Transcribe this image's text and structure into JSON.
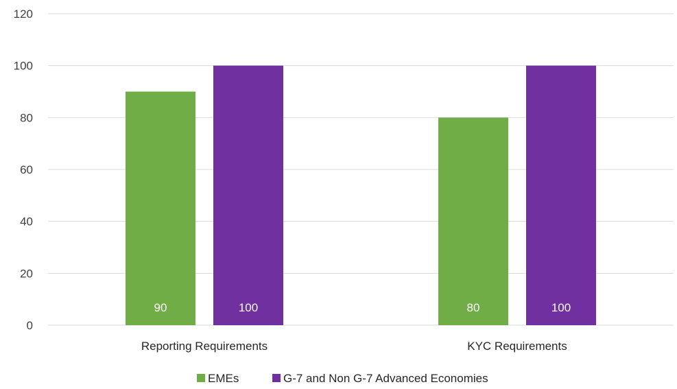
{
  "chart_data": {
    "type": "bar",
    "title": "",
    "xlabel": "",
    "ylabel": "",
    "categories": [
      "Reporting  Requirements",
      "KYC Requirements"
    ],
    "series": [
      {
        "name": "EMEs",
        "values": [
          90,
          80
        ],
        "color": "#70ad47"
      },
      {
        "name": "G-7 and Non G-7 Advanced Economies",
        "values": [
          100,
          100
        ],
        "color": "#7030a0"
      }
    ],
    "ylim": [
      0,
      120
    ],
    "yticks": [
      0,
      20,
      40,
      60,
      80,
      100,
      120
    ],
    "grid": true,
    "legend_position": "bottom",
    "data_labels": "inside-base",
    "gridline_color": "#d9d9d9"
  }
}
